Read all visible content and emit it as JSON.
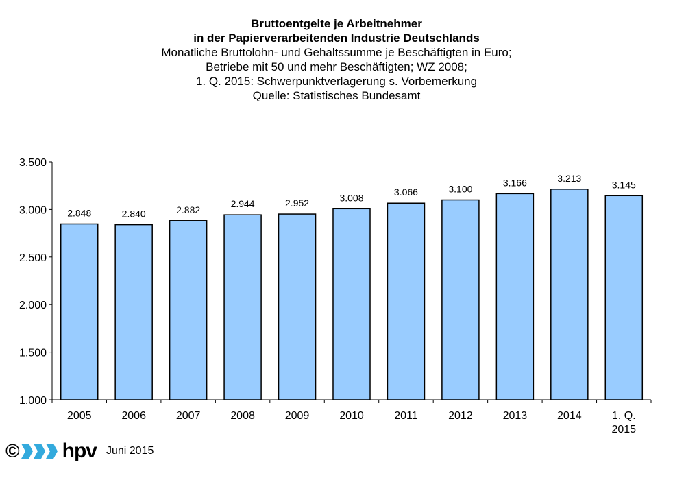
{
  "header": {
    "title_line1": "Bruttoentgelte je Arbeitnehmer",
    "title_line2": "in der Papierverarbeitenden Industrie Deutschlands",
    "subtitle_line1": "Monatliche Bruttolohn- und Gehaltssumme je Beschäftigten in Euro;",
    "subtitle_line2": "Betriebe mit 50 und mehr Beschäftigten; WZ 2008;",
    "subtitle_line3": "1. Q. 2015: Schwerpunktverlagerung s. Vorbemerkung",
    "source": "Quelle: Statistisches Bundesamt"
  },
  "chart_data": {
    "type": "bar",
    "categories": [
      "2005",
      "2006",
      "2007",
      "2008",
      "2009",
      "2010",
      "2011",
      "2012",
      "2013",
      "2014",
      "1. Q. 2015"
    ],
    "values": [
      2848,
      2840,
      2882,
      2944,
      2952,
      3008,
      3066,
      3100,
      3166,
      3213,
      3145
    ],
    "value_labels": [
      "2.848",
      "2.840",
      "2.882",
      "2.944",
      "2.952",
      "3.008",
      "3.066",
      "3.100",
      "3.166",
      "3.213",
      "3.145"
    ],
    "ylim": [
      1000,
      3500
    ],
    "yticks": [
      1000,
      1500,
      2000,
      2500,
      3000,
      3500
    ],
    "ytick_labels": [
      "1.000",
      "1.500",
      "2.000",
      "2.500",
      "3.000",
      "3.500"
    ],
    "bar_color": "#99ccff",
    "grid": false,
    "legend": "none"
  },
  "footer": {
    "copyright_symbol": "©",
    "logo_text": "hpv",
    "date": "Juni 2015",
    "logo_color": "#33aadd"
  }
}
